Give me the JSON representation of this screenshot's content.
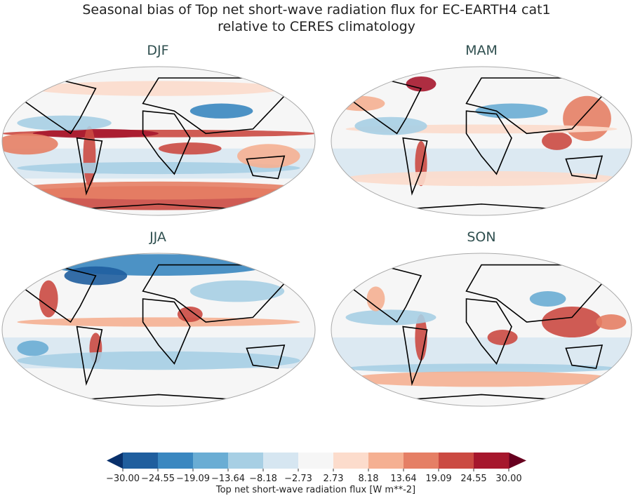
{
  "title": {
    "line1": "Seasonal bias of Top net short-wave radiation flux for EC-EARTH4 cat1",
    "line2": "relative to CERES climatology"
  },
  "panels": [
    {
      "label": "DJF"
    },
    {
      "label": "MAM"
    },
    {
      "label": "JJA"
    },
    {
      "label": "SON"
    }
  ],
  "colorbar": {
    "label": "Top net short-wave radiation flux [W m**-2]",
    "ticks": [
      "−30.00",
      "−24.55",
      "−19.09",
      "−13.64",
      "−8.18",
      "−2.73",
      "2.73",
      "8.18",
      "13.64",
      "19.09",
      "24.55",
      "30.00"
    ],
    "colors": [
      "#1f5e9e",
      "#3a87c0",
      "#6aadd4",
      "#a7cfe4",
      "#d6e6f1",
      "#f6f6f6",
      "#fcdccc",
      "#f5b092",
      "#e57f65",
      "#cb4a42",
      "#a6172d"
    ],
    "under_color": "#08306b",
    "over_color": "#67001f",
    "extend": "both"
  }
}
